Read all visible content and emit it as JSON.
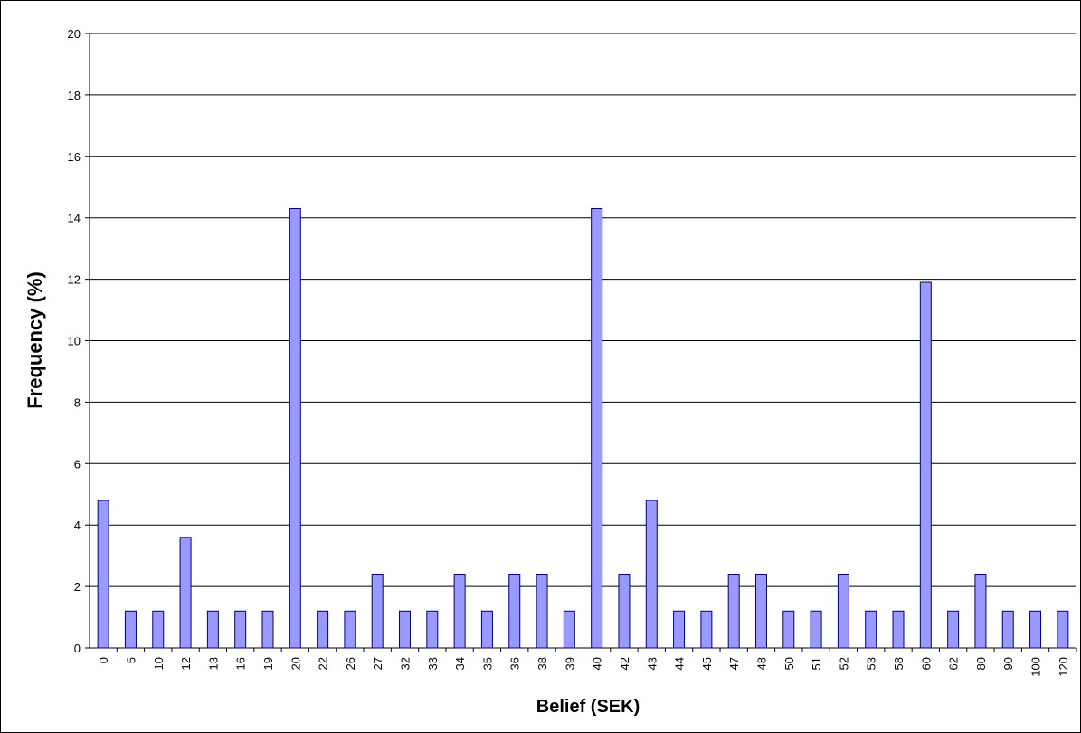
{
  "chart_data": {
    "type": "bar",
    "x_label": "Belief (SEK)",
    "y_label": "Frequency (%)",
    "categories": [
      "0",
      "5",
      "10",
      "12",
      "13",
      "16",
      "19",
      "20",
      "22",
      "26",
      "27",
      "32",
      "33",
      "34",
      "35",
      "36",
      "38",
      "39",
      "40",
      "42",
      "43",
      "44",
      "45",
      "47",
      "48",
      "50",
      "51",
      "52",
      "53",
      "58",
      "60",
      "62",
      "80",
      "90",
      "100",
      "120"
    ],
    "values": [
      4.8,
      1.2,
      1.2,
      3.6,
      1.2,
      1.2,
      1.2,
      14.3,
      1.2,
      1.2,
      2.4,
      1.2,
      1.2,
      2.4,
      1.2,
      2.4,
      2.4,
      1.2,
      14.3,
      2.4,
      4.8,
      1.2,
      1.2,
      2.4,
      2.4,
      1.2,
      1.2,
      2.4,
      1.2,
      1.2,
      11.9,
      1.2,
      2.4,
      1.2,
      1.2,
      1.2
    ],
    "color": "#9999ff",
    "ylim": [
      0,
      20
    ],
    "yticks": [
      0,
      2,
      4,
      6,
      8,
      10,
      12,
      14,
      16,
      18,
      20
    ],
    "grid": true
  }
}
